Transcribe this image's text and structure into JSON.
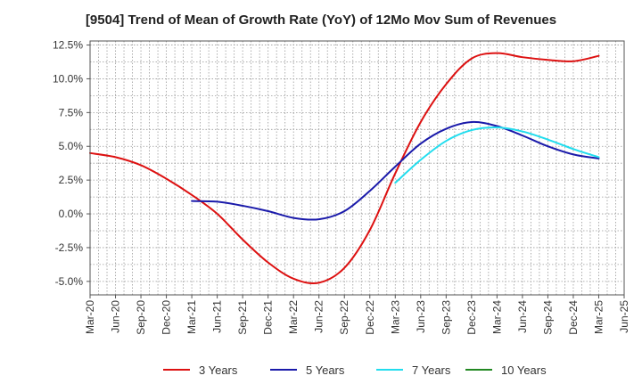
{
  "chart_data": {
    "type": "line",
    "title": "[9504]  Trend of Mean of Growth Rate (YoY) of 12Mo Mov Sum of Revenues",
    "xlabel": "",
    "ylabel": "",
    "x_tick_labels": [
      "Mar-20",
      "Jun-20",
      "Sep-20",
      "Dec-20",
      "Mar-21",
      "Jun-21",
      "Sep-21",
      "Dec-21",
      "Mar-22",
      "Jun-22",
      "Sep-22",
      "Dec-22",
      "Mar-23",
      "Jun-23",
      "Sep-23",
      "Dec-23",
      "Mar-24",
      "Jun-24",
      "Sep-24",
      "Dec-24",
      "Mar-25",
      "Jun-25"
    ],
    "y_ticks": [
      -5.0,
      -2.5,
      0.0,
      2.5,
      5.0,
      7.5,
      10.0,
      12.5
    ],
    "y_tick_labels": [
      "-5.0%",
      "-2.5%",
      "0.0%",
      "2.5%",
      "5.0%",
      "7.5%",
      "10.0%",
      "12.5%"
    ],
    "ylim": [
      -6.0,
      12.8
    ],
    "grid": true,
    "legend_position": "bottom",
    "series": [
      {
        "name": "3 Years",
        "color": "#dd1111",
        "points": [
          [
            0,
            4.5
          ],
          [
            1,
            4.2
          ],
          [
            2,
            3.6
          ],
          [
            3,
            2.6
          ],
          [
            4,
            1.4
          ],
          [
            5,
            0.0
          ],
          [
            6,
            -1.9
          ],
          [
            7,
            -3.6
          ],
          [
            8,
            -4.8
          ],
          [
            9,
            -5.1
          ],
          [
            10,
            -4.0
          ],
          [
            11,
            -1.2
          ],
          [
            12,
            3.0
          ],
          [
            13,
            6.8
          ],
          [
            14,
            9.6
          ],
          [
            15,
            11.5
          ],
          [
            16,
            11.9
          ],
          [
            17,
            11.6
          ],
          [
            18,
            11.4
          ],
          [
            19,
            11.3
          ],
          [
            20,
            11.7
          ]
        ]
      },
      {
        "name": "5 Years",
        "color": "#1a1aaa",
        "points": [
          [
            4,
            0.95
          ],
          [
            5,
            0.9
          ],
          [
            6,
            0.6
          ],
          [
            7,
            0.2
          ],
          [
            8,
            -0.3
          ],
          [
            9,
            -0.4
          ],
          [
            10,
            0.2
          ],
          [
            11,
            1.7
          ],
          [
            12,
            3.5
          ],
          [
            13,
            5.2
          ],
          [
            14,
            6.3
          ],
          [
            15,
            6.8
          ],
          [
            16,
            6.5
          ],
          [
            17,
            5.8
          ],
          [
            18,
            5.0
          ],
          [
            19,
            4.4
          ],
          [
            20,
            4.1
          ]
        ]
      },
      {
        "name": "7 Years",
        "color": "#22ddee",
        "points": [
          [
            12,
            2.3
          ],
          [
            13,
            4.0
          ],
          [
            14,
            5.4
          ],
          [
            15,
            6.2
          ],
          [
            16,
            6.4
          ],
          [
            17,
            6.1
          ],
          [
            18,
            5.5
          ],
          [
            19,
            4.8
          ],
          [
            20,
            4.2
          ]
        ]
      },
      {
        "name": "10 Years",
        "color": "#228822",
        "points": []
      }
    ]
  }
}
